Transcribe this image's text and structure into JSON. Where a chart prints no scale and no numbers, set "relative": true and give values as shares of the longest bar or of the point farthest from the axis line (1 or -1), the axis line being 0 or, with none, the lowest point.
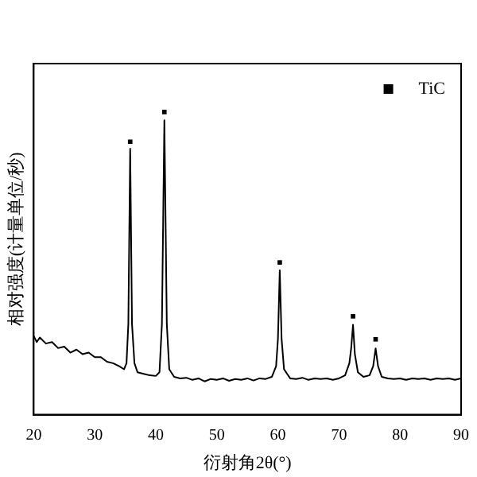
{
  "chart_data": {
    "type": "line",
    "relative": true,
    "xlabel": "衍射角2θ(°)",
    "ylabel": "相对强度(计量单位/秒)",
    "xlim": [
      20,
      90
    ],
    "xticks": [
      20,
      30,
      40,
      50,
      60,
      70,
      80,
      90
    ],
    "tick_labels": "x",
    "grid": false,
    "legend": "top right",
    "series": [
      {
        "color": "#000000",
        "marker": "none",
        "x": [
          20,
          20.5,
          21,
          22,
          23,
          24,
          25,
          26,
          27,
          28,
          29,
          30,
          31,
          32,
          33,
          34,
          34.8,
          35.2,
          35.5,
          35.8,
          36.1,
          36.5,
          37,
          38,
          39,
          40,
          40.6,
          41.0,
          41.4,
          41.8,
          42.2,
          43,
          44,
          45,
          46,
          47,
          48,
          49,
          50,
          51,
          52,
          53,
          54,
          55,
          56,
          57,
          58,
          59,
          59.7,
          60.0,
          60.3,
          60.6,
          61,
          62,
          63,
          64,
          65,
          66,
          67,
          68,
          69,
          70,
          71,
          71.7,
          72.0,
          72.3,
          72.6,
          73.1,
          74,
          75,
          75.6,
          76.0,
          76.4,
          77,
          78,
          79,
          80,
          81,
          82,
          83,
          84,
          85,
          86,
          87,
          88,
          89,
          90
        ],
        "values": [
          0.26,
          0.24,
          0.255,
          0.235,
          0.24,
          0.22,
          0.225,
          0.205,
          0.215,
          0.2,
          0.205,
          0.19,
          0.19,
          0.175,
          0.17,
          0.16,
          0.15,
          0.17,
          0.3,
          0.879,
          0.3,
          0.17,
          0.14,
          0.135,
          0.13,
          0.128,
          0.14,
          0.3,
          0.973,
          0.3,
          0.15,
          0.125,
          0.12,
          0.122,
          0.115,
          0.12,
          0.11,
          0.118,
          0.115,
          0.12,
          0.112,
          0.118,
          0.115,
          0.12,
          0.113,
          0.12,
          0.118,
          0.125,
          0.16,
          0.25,
          0.477,
          0.25,
          0.15,
          0.12,
          0.118,
          0.122,
          0.115,
          0.12,
          0.118,
          0.12,
          0.115,
          0.12,
          0.13,
          0.17,
          0.22,
          0.297,
          0.2,
          0.14,
          0.125,
          0.13,
          0.16,
          0.219,
          0.16,
          0.125,
          0.12,
          0.118,
          0.12,
          0.115,
          0.12,
          0.118,
          0.12,
          0.115,
          0.12,
          0.118,
          0.12,
          0.115,
          0.12
        ]
      },
      {
        "type": "scatter",
        "name": "TiC",
        "color": "#000000",
        "marker": "square",
        "x": [
          35.8,
          41.4,
          60.3,
          72.3,
          76.0
        ],
        "values": [
          0.902,
          1,
          0.503,
          0.325,
          0.249
        ]
      }
    ]
  }
}
